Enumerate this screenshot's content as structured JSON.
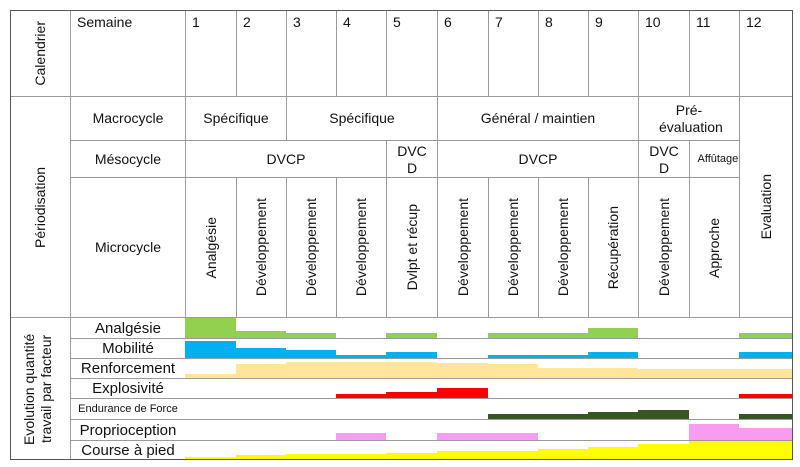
{
  "calendar": {
    "label": "Calendrier",
    "week_label": "Semaine",
    "weeks": [
      "1",
      "2",
      "3",
      "4",
      "5",
      "6",
      "7",
      "8",
      "9",
      "10",
      "11",
      "12"
    ]
  },
  "periodisation": {
    "label": "Périodisation",
    "macro_label": "Macrocycle",
    "macro": [
      "Spécifique",
      "Spécifique",
      "Général / maintien",
      "Pré-évaluation"
    ],
    "meso_label": "Mésocycle",
    "meso": [
      "DVCP",
      "DVC D",
      "DVCP",
      "DVC D",
      "Affûtage"
    ],
    "micro_label": "Microcycle",
    "micro": [
      "Analgésie",
      "Développement",
      "Développement",
      "Développement",
      "Dvlpt et récup",
      "Développement",
      "Développement",
      "Développement",
      "Récupération",
      "Développement",
      "Approche"
    ],
    "evaluation": "Evaluation"
  },
  "evolution": {
    "label": "Evolution quantité travail par facteur"
  },
  "chart_data": {
    "type": "bar",
    "title": "Evolution quantité travail par facteur",
    "xlabel": "Semaine",
    "categories": [
      "1",
      "2",
      "3",
      "4",
      "5",
      "6",
      "7",
      "8",
      "9",
      "10",
      "11",
      "12"
    ],
    "ylim": [
      0,
      1
    ],
    "series": [
      {
        "name": "Analgésie",
        "color": "#92d050",
        "values": [
          1,
          0.35,
          0.25,
          0,
          0.25,
          0,
          0.25,
          0.25,
          0.5,
          0,
          0,
          0.25
        ]
      },
      {
        "name": "Mobilité",
        "color": "#00b0f0",
        "values": [
          0.9,
          0.55,
          0.4,
          0.15,
          0.3,
          0,
          0.15,
          0.15,
          0.3,
          0,
          0,
          0.3
        ]
      },
      {
        "name": "Renforcement",
        "color": "#ffe699",
        "values": [
          0.2,
          0.75,
          0.85,
          0.85,
          0.85,
          0.8,
          0.75,
          0.5,
          0.55,
          0.45,
          0.45,
          0.45
        ]
      },
      {
        "name": "Explosivité",
        "color": "#ff0000",
        "values": [
          0,
          0,
          0,
          0.2,
          0.3,
          0.5,
          0,
          0,
          0,
          0,
          0,
          0.2
        ]
      },
      {
        "name": "Endurance de Force",
        "color": "#375623",
        "values": [
          0,
          0,
          0,
          0,
          0,
          0,
          0.25,
          0.25,
          0.35,
          0.45,
          0,
          0.25
        ]
      },
      {
        "name": "Proprioception",
        "color": "#f89cf0",
        "values": [
          0,
          0,
          0,
          0.35,
          0,
          0.35,
          0.35,
          0,
          0,
          0,
          0.8,
          0.6
        ]
      },
      {
        "name": "Course à pied",
        "color": "#ffff00",
        "values": [
          0.15,
          0.25,
          0.3,
          0.3,
          0.35,
          0.45,
          0.45,
          0.6,
          0.7,
          0.85,
          1,
          1
        ]
      }
    ]
  }
}
